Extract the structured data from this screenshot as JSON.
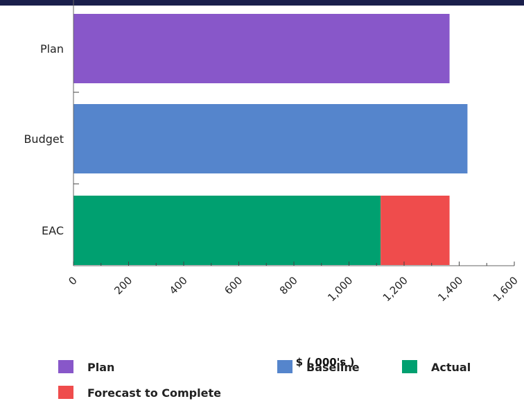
{
  "chart_data": {
    "type": "bar",
    "orientation": "horizontal",
    "stacked": true,
    "categories": [
      "Plan",
      "Budget",
      "EAC"
    ],
    "series": [
      {
        "name": "Plan",
        "color": "#8857c9",
        "values": [
          1365,
          0,
          0
        ]
      },
      {
        "name": "Baseline",
        "color": "#5585cc",
        "values": [
          0,
          1430,
          0
        ]
      },
      {
        "name": "Actual",
        "color": "#00a070",
        "values": [
          0,
          0,
          1115
        ]
      },
      {
        "name": "Forecast to Complete",
        "color": "#ef4c4c",
        "values": [
          0,
          0,
          250
        ]
      }
    ],
    "xlabel": "$ ( 000's )",
    "ylabel": "",
    "xlim": [
      0,
      1600
    ],
    "xticks": [
      0,
      200,
      400,
      600,
      800,
      1000,
      1200,
      1400,
      1600
    ],
    "xtick_labels": [
      "0",
      "200",
      "400",
      "600",
      "800",
      "1,000",
      "1,200",
      "1,400",
      "1,600"
    ],
    "grid": false,
    "legend_position": "bottom"
  }
}
